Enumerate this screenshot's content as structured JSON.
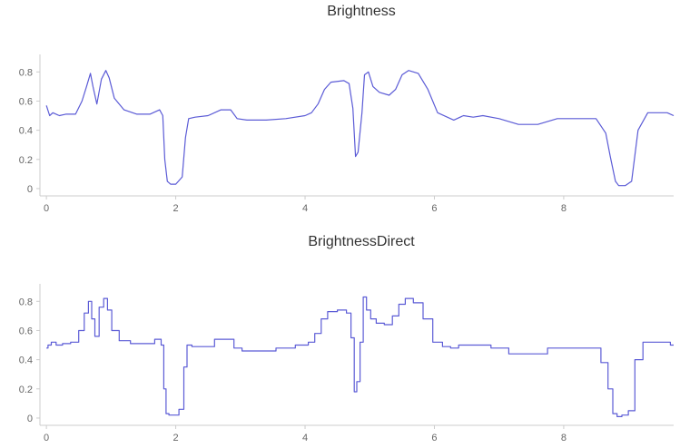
{
  "chart_data": [
    {
      "type": "line",
      "title": "Brightness",
      "color": "#5b5bd6",
      "xlim": [
        -0.1,
        9.7
      ],
      "ylim": [
        -0.05,
        0.92
      ],
      "x_ticks": [
        "0",
        "2",
        "4",
        "6",
        "8"
      ],
      "y_ticks": [
        "0",
        "0.2",
        "0.4",
        "0.6",
        "0.8"
      ],
      "grid": false,
      "x": [
        0,
        0.05,
        0.1,
        0.2,
        0.3,
        0.45,
        0.55,
        0.62,
        0.68,
        0.72,
        0.78,
        0.85,
        0.92,
        0.97,
        1.05,
        1.2,
        1.4,
        1.6,
        1.75,
        1.8,
        1.83,
        1.87,
        1.92,
        2.0,
        2.1,
        2.15,
        2.2,
        2.3,
        2.5,
        2.7,
        2.85,
        2.95,
        3.1,
        3.4,
        3.7,
        4.0,
        4.1,
        4.2,
        4.3,
        4.4,
        4.6,
        4.68,
        4.74,
        4.78,
        4.82,
        4.88,
        4.92,
        4.98,
        5.05,
        5.15,
        5.3,
        5.4,
        5.5,
        5.6,
        5.75,
        5.9,
        6.05,
        6.2,
        6.3,
        6.45,
        6.6,
        6.75,
        7.0,
        7.3,
        7.6,
        7.9,
        8.2,
        8.5,
        8.65,
        8.72,
        8.8,
        8.85,
        8.95,
        9.05,
        9.15,
        9.3,
        9.6,
        9.7
      ],
      "y": [
        0.57,
        0.5,
        0.52,
        0.5,
        0.51,
        0.51,
        0.6,
        0.7,
        0.79,
        0.7,
        0.58,
        0.75,
        0.81,
        0.76,
        0.62,
        0.54,
        0.51,
        0.51,
        0.54,
        0.5,
        0.2,
        0.05,
        0.03,
        0.03,
        0.08,
        0.35,
        0.48,
        0.49,
        0.5,
        0.54,
        0.54,
        0.48,
        0.47,
        0.47,
        0.48,
        0.5,
        0.52,
        0.58,
        0.68,
        0.73,
        0.74,
        0.72,
        0.55,
        0.22,
        0.25,
        0.52,
        0.78,
        0.8,
        0.7,
        0.66,
        0.64,
        0.68,
        0.78,
        0.81,
        0.79,
        0.68,
        0.52,
        0.49,
        0.47,
        0.5,
        0.49,
        0.5,
        0.48,
        0.44,
        0.44,
        0.48,
        0.48,
        0.48,
        0.38,
        0.22,
        0.05,
        0.02,
        0.02,
        0.05,
        0.4,
        0.52,
        0.52,
        0.5
      ]
    },
    {
      "type": "line",
      "title": "BrightnessDirect",
      "color": "#5b5bd6",
      "xlim": [
        -0.1,
        9.7
      ],
      "ylim": [
        -0.05,
        0.92
      ],
      "x_ticks": [
        "0",
        "2",
        "4",
        "6",
        "8"
      ],
      "y_ticks": [
        "0",
        "0.2",
        "0.4",
        "0.6",
        "0.8"
      ],
      "grid": false,
      "step": true,
      "x": [
        0,
        0.05,
        0.1,
        0.2,
        0.3,
        0.45,
        0.55,
        0.62,
        0.68,
        0.72,
        0.78,
        0.85,
        0.92,
        0.97,
        1.05,
        1.2,
        1.4,
        1.6,
        1.75,
        1.8,
        1.83,
        1.87,
        1.92,
        2.0,
        2.1,
        2.15,
        2.2,
        2.3,
        2.5,
        2.7,
        2.85,
        2.95,
        3.1,
        3.4,
        3.7,
        4.0,
        4.1,
        4.2,
        4.3,
        4.4,
        4.6,
        4.68,
        4.74,
        4.78,
        4.82,
        4.88,
        4.92,
        4.98,
        5.05,
        5.15,
        5.3,
        5.4,
        5.5,
        5.6,
        5.75,
        5.9,
        6.05,
        6.2,
        6.3,
        6.45,
        6.6,
        6.75,
        7.0,
        7.3,
        7.6,
        7.9,
        8.2,
        8.5,
        8.65,
        8.72,
        8.8,
        8.85,
        8.95,
        9.05,
        9.15,
        9.3,
        9.6,
        9.7
      ],
      "y": [
        0.48,
        0.5,
        0.52,
        0.5,
        0.51,
        0.52,
        0.6,
        0.72,
        0.8,
        0.68,
        0.56,
        0.76,
        0.82,
        0.74,
        0.6,
        0.53,
        0.51,
        0.51,
        0.54,
        0.5,
        0.2,
        0.03,
        0.02,
        0.02,
        0.06,
        0.35,
        0.5,
        0.49,
        0.49,
        0.54,
        0.54,
        0.48,
        0.46,
        0.46,
        0.48,
        0.5,
        0.52,
        0.58,
        0.68,
        0.73,
        0.74,
        0.72,
        0.55,
        0.18,
        0.25,
        0.52,
        0.83,
        0.74,
        0.68,
        0.65,
        0.64,
        0.7,
        0.78,
        0.82,
        0.79,
        0.68,
        0.52,
        0.49,
        0.48,
        0.5,
        0.5,
        0.5,
        0.48,
        0.44,
        0.44,
        0.48,
        0.48,
        0.48,
        0.38,
        0.2,
        0.03,
        0.01,
        0.02,
        0.05,
        0.4,
        0.52,
        0.52,
        0.5
      ]
    }
  ]
}
